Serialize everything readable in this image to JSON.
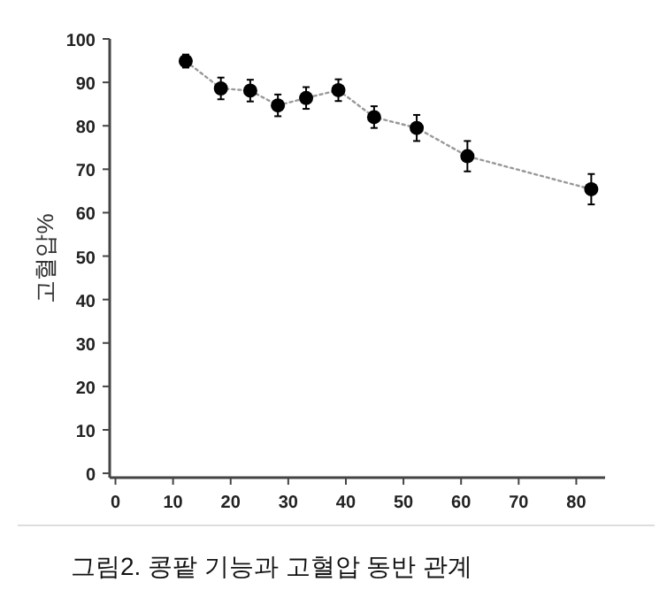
{
  "chart_data": {
    "type": "line",
    "ylabel": "고혈압%",
    "x": [
      12.2,
      18.3,
      23.4,
      28.2,
      33.1,
      38.7,
      44.9,
      52.3,
      61.1,
      82.6
    ],
    "series": [
      {
        "color": "#000000",
        "values": [
          94.9,
          88.6,
          88.1,
          84.7,
          86.4,
          88.2,
          82.0,
          79.5,
          73.0,
          65.4
        ],
        "errors": [
          1.5,
          2.5,
          2.5,
          2.5,
          2.5,
          2.5,
          2.5,
          3,
          3.5,
          3.5
        ]
      }
    ],
    "xlim": [
      -1,
      85
    ],
    "xticks": [
      0,
      10,
      20,
      30,
      40,
      50,
      60,
      70,
      80
    ],
    "ylim": [
      -1,
      100
    ],
    "yticks": [
      0,
      10,
      20,
      30,
      40,
      50,
      60,
      70,
      80,
      90,
      100
    ],
    "marker": "circle",
    "line_style": "dotted",
    "grid": false,
    "annotations": [
      "그림2. 콩팥 기능과 고혈압 동반 관계"
    ]
  }
}
